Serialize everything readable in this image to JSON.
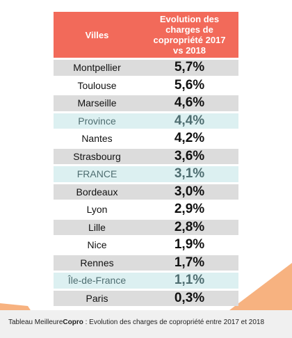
{
  "chart_data": {
    "type": "table",
    "columns": [
      "Villes",
      "Evolution  des charges de copropriété 2017 vs 2018"
    ],
    "rows": [
      {
        "city": "Montpellier",
        "value": "5,7%",
        "style": "gray"
      },
      {
        "city": "Toulouse",
        "value": "5,6%",
        "style": "white"
      },
      {
        "city": "Marseille",
        "value": "4,6%",
        "style": "gray"
      },
      {
        "city": "Province",
        "value": "4,4%",
        "style": "teal"
      },
      {
        "city": "Nantes",
        "value": "4,2%",
        "style": "white"
      },
      {
        "city": "Strasbourg",
        "value": "3,6%",
        "style": "gray"
      },
      {
        "city": "FRANCE",
        "value": "3,1%",
        "style": "teal"
      },
      {
        "city": "Bordeaux",
        "value": "3,0%",
        "style": "gray"
      },
      {
        "city": "Lyon",
        "value": "2,9%",
        "style": "white"
      },
      {
        "city": "Lille",
        "value": "2,8%",
        "style": "gray"
      },
      {
        "city": "Nice",
        "value": "1,9%",
        "style": "white"
      },
      {
        "city": "Rennes",
        "value": "1,7%",
        "style": "gray"
      },
      {
        "city": "Île-de-France",
        "value": "1,1%",
        "style": "teal"
      },
      {
        "city": "Paris",
        "value": "0,3%",
        "style": "gray"
      }
    ]
  },
  "header": {
    "col1": "Villes",
    "col2_line1": "Evolution  des charges de",
    "col2_line2": "copropriété 2017",
    "col2_line3": "vs 2018"
  },
  "caption": {
    "prefix": "Tableau Meilleure",
    "brand": "Copro",
    "text": " : Evolution des charges de copropriété entre 2017 et 2018"
  },
  "colors": {
    "header": "#f26a5a",
    "row_gray": "#dcdcdc",
    "row_teal": "#dcf0f1",
    "decor_orange": "#f6a56a"
  }
}
